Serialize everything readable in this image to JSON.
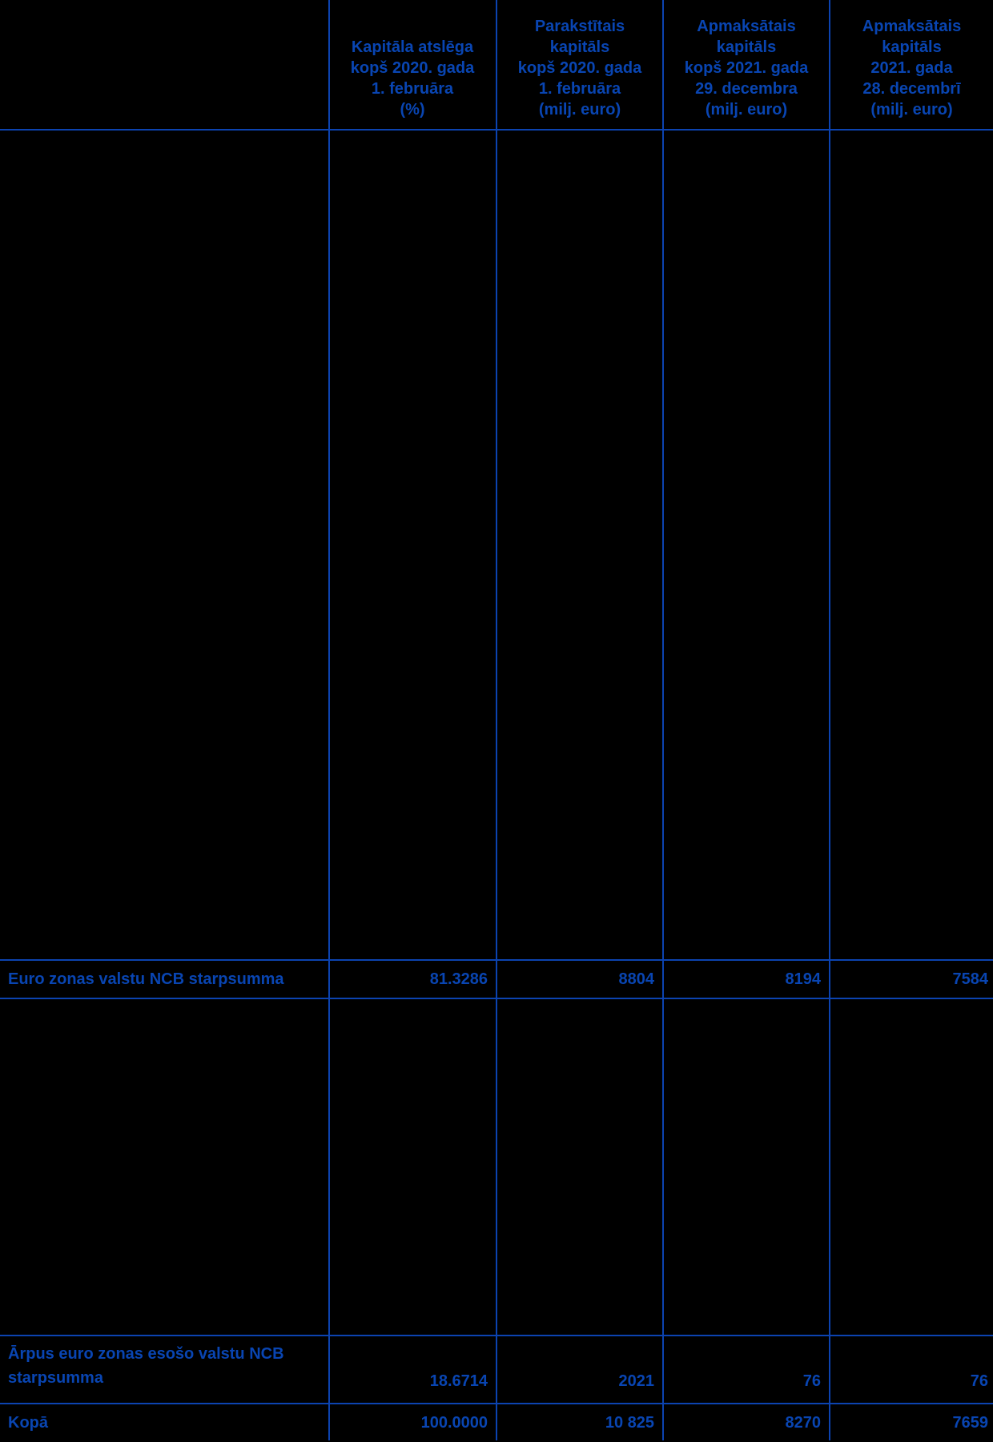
{
  "colors": {
    "background": "#000000",
    "text": "#0945b2",
    "border": "#0c43b0"
  },
  "table": {
    "columns": [
      {
        "name": "row_label",
        "header_lines": []
      },
      {
        "name": "capital_key_pct",
        "header_lines": [
          "Kapitāla atslēga",
          "kopš 2020. gada",
          "1. februāra",
          "(%)"
        ]
      },
      {
        "name": "subscribed_capital",
        "header_lines": [
          "Parakstītais",
          "kapitāls",
          "kopš 2020. gada",
          "1. februāra",
          "(milj. euro)"
        ]
      },
      {
        "name": "paid_up_capital_since_2021",
        "header_lines": [
          "Apmaksātais",
          "kapitāls",
          "kopš 2021. gada",
          "29. decembra",
          "(milj. euro)"
        ]
      },
      {
        "name": "paid_up_capital_2021_dec28",
        "header_lines": [
          "Apmaksātais",
          "kapitāls",
          "2021. gada",
          "28. decembrī",
          "(milj. euro)"
        ]
      }
    ],
    "rows": [
      {
        "label": "Euro zonas valstu NCB starpsumma",
        "values": [
          "81.3286",
          "8804",
          "8194",
          "7584"
        ]
      },
      {
        "label": "Ārpus euro zonas esošo valstu NCB starpsumma",
        "values": [
          "18.6714",
          "2021",
          "76",
          "76"
        ]
      },
      {
        "label": "Kopā",
        "values": [
          "100.0000",
          "10 825",
          "8270",
          "7659"
        ]
      }
    ]
  }
}
